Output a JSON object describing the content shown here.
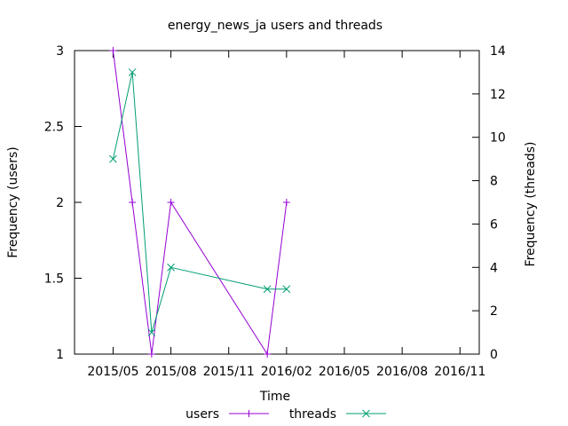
{
  "chart_data": {
    "type": "line",
    "title": "energy_news_ja users and threads",
    "xlabel": "Time",
    "ylabel_left": "Frequency (users)",
    "ylabel_right": "Frequency (threads)",
    "x_ticks": [
      "2015/05",
      "2015/08",
      "2015/11",
      "2016/02",
      "2016/05",
      "2016/08",
      "2016/11"
    ],
    "xlim": [
      "2015/03",
      "2016/12"
    ],
    "ylim_left": [
      1,
      3
    ],
    "yticks_left": [
      "1",
      "1.5",
      "2",
      "2.5",
      "3"
    ],
    "ylim_right": [
      0,
      14
    ],
    "yticks_right": [
      "0",
      "2",
      "4",
      "6",
      "8",
      "10",
      "12",
      "14"
    ],
    "grid": false,
    "legend_position": "bottom",
    "series": [
      {
        "name": "users",
        "axis": "left",
        "color": "#9400d3",
        "marker": "plus",
        "points": [
          {
            "x": "2015/05",
            "y": 3
          },
          {
            "x": "2015/06",
            "y": 2
          },
          {
            "x": "2015/07",
            "y": 1
          },
          {
            "x": "2015/08",
            "y": 2
          },
          {
            "x": "2016/01",
            "y": 1
          },
          {
            "x": "2016/02",
            "y": 2
          }
        ]
      },
      {
        "name": "threads",
        "axis": "right",
        "color": "#009e73",
        "marker": "cross",
        "points": [
          {
            "x": "2015/05",
            "y": 9
          },
          {
            "x": "2015/06",
            "y": 13
          },
          {
            "x": "2015/07",
            "y": 1
          },
          {
            "x": "2015/08",
            "y": 4
          },
          {
            "x": "2016/01",
            "y": 3
          },
          {
            "x": "2016/02",
            "y": 3
          }
        ]
      }
    ]
  }
}
